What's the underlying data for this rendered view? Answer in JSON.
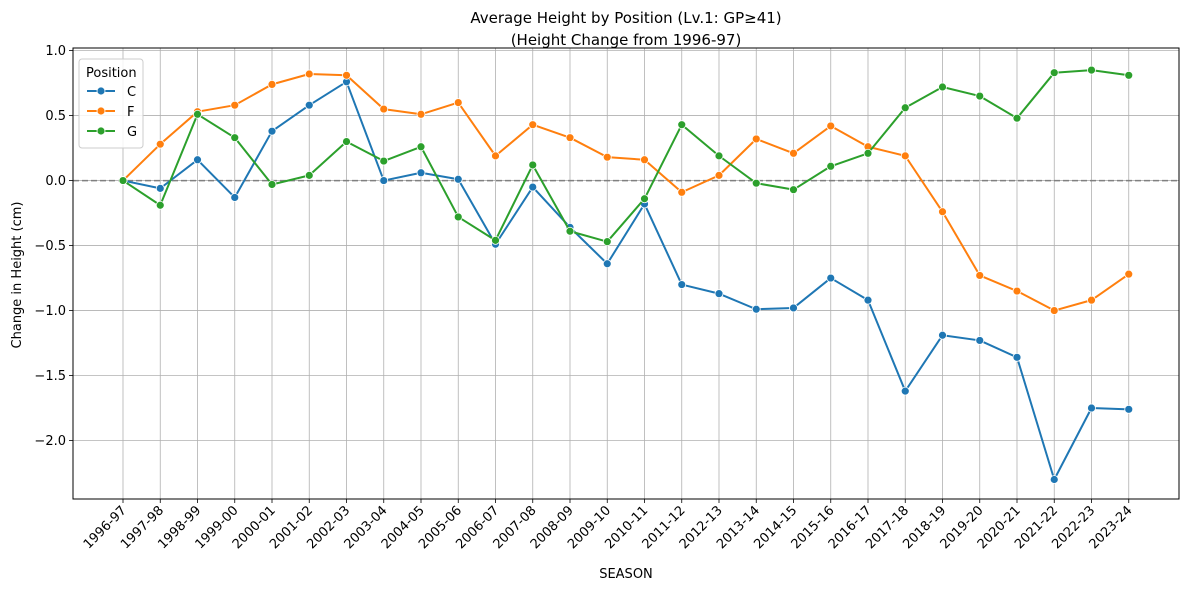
{
  "chart_data": {
    "type": "line",
    "title": "Average Height by Position (Lv.1: GP≥41)",
    "subtitle": "(Height Change from 1996-97)",
    "xlabel": "SEASON",
    "ylabel": "Change in Height (cm)",
    "ylim": [
      -2.45,
      1.02
    ],
    "yticks": [
      1.0,
      0.5,
      0.0,
      -0.5,
      -1.0,
      -1.5,
      -2.0
    ],
    "ytick_labels": [
      "1.0",
      "0.5",
      "0.0",
      "−0.5",
      "−1.0",
      "−1.5",
      "−2.0"
    ],
    "grid": true,
    "reference_line": 0,
    "legend": {
      "title": "Position",
      "placement": "upper-left"
    },
    "categories": [
      "1996-97",
      "1997-98",
      "1998-99",
      "1999-00",
      "2000-01",
      "2001-02",
      "2002-03",
      "2003-04",
      "2004-05",
      "2005-06",
      "2006-07",
      "2007-08",
      "2008-09",
      "2009-10",
      "2010-11",
      "2011-12",
      "2012-13",
      "2013-14",
      "2014-15",
      "2015-16",
      "2016-17",
      "2017-18",
      "2018-19",
      "2019-20",
      "2020-21",
      "2021-22",
      "2022-23",
      "2023-24"
    ],
    "series": [
      {
        "name": "C",
        "color": "#1f77b4",
        "values": [
          0.0,
          -0.06,
          0.16,
          -0.13,
          0.38,
          0.58,
          0.76,
          0.0,
          0.06,
          0.01,
          -0.49,
          -0.05,
          -0.36,
          -0.64,
          -0.18,
          -0.8,
          -0.87,
          -0.99,
          -0.98,
          -0.75,
          -0.92,
          -1.62,
          -1.19,
          -1.23,
          -1.36,
          -2.3,
          -1.75,
          -1.76
        ]
      },
      {
        "name": "F",
        "color": "#ff7f0e",
        "values": [
          0.0,
          0.28,
          0.53,
          0.58,
          0.74,
          0.82,
          0.81,
          0.55,
          0.51,
          0.6,
          0.19,
          0.43,
          0.33,
          0.18,
          0.16,
          -0.09,
          0.04,
          0.32,
          0.21,
          0.42,
          0.26,
          0.19,
          -0.24,
          -0.73,
          -0.85,
          -1.0,
          -0.92,
          -0.72
        ]
      },
      {
        "name": "G",
        "color": "#2ca02c",
        "values": [
          0.0,
          -0.19,
          0.51,
          0.33,
          -0.03,
          0.04,
          0.3,
          0.15,
          0.26,
          -0.28,
          -0.46,
          0.12,
          -0.39,
          -0.47,
          -0.14,
          0.43,
          0.19,
          -0.02,
          -0.07,
          0.11,
          0.21,
          0.56,
          0.72,
          0.65,
          0.48,
          0.83,
          0.85,
          0.81
        ]
      }
    ]
  }
}
